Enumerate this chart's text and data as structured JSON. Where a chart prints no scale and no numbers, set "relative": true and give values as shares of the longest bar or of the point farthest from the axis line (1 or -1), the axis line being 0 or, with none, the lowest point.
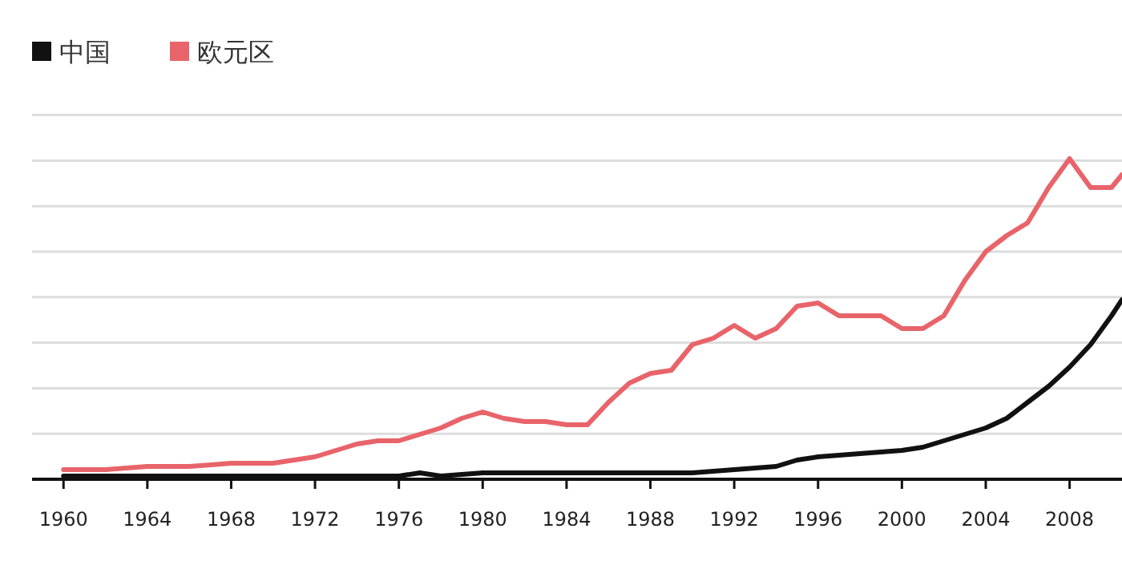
{
  "chart_data": {
    "type": "line",
    "relative": true,
    "grid": "y",
    "legend": "top left",
    "marker": "none",
    "line_style": "solid",
    "xlim": [
      1958.5,
      2010.5
    ],
    "xticks": [
      1960,
      1964,
      1968,
      1972,
      1976,
      1980,
      1984,
      1988,
      1992,
      1996,
      2000,
      2004,
      2008
    ],
    "series": [
      {
        "name": "中国",
        "color": "#111111",
        "x": [
          1960,
          1965,
          1970,
          1975,
          1976,
          1977,
          1978,
          1980,
          1984,
          1988,
          1990,
          1992,
          1994,
          1995,
          1996,
          1998,
          2000,
          2001,
          2002,
          2003,
          2004,
          2005,
          2006,
          2007,
          2008,
          2009,
          2010,
          2010.5
        ],
        "values": [
          0.01,
          0.01,
          0.01,
          0.01,
          0.01,
          0.02,
          0.01,
          0.02,
          0.02,
          0.02,
          0.02,
          0.03,
          0.04,
          0.06,
          0.07,
          0.08,
          0.09,
          0.1,
          0.12,
          0.14,
          0.16,
          0.19,
          0.24,
          0.29,
          0.35,
          0.42,
          0.51,
          0.56
        ]
      },
      {
        "name": "欧元区",
        "color": "#e8646a",
        "x": [
          1960,
          1962,
          1964,
          1966,
          1968,
          1970,
          1972,
          1973,
          1974,
          1975,
          1976,
          1977,
          1978,
          1979,
          1980,
          1981,
          1982,
          1983,
          1984,
          1985,
          1986,
          1987,
          1988,
          1989,
          1990,
          1991,
          1992,
          1993,
          1994,
          1995,
          1996,
          1997,
          1998,
          1999,
          2000,
          2001,
          2002,
          2003,
          2004,
          2005,
          2006,
          2007,
          2008,
          2009,
          2010,
          2010.5
        ],
        "values": [
          0.03,
          0.03,
          0.04,
          0.04,
          0.05,
          0.05,
          0.07,
          0.09,
          0.11,
          0.12,
          0.12,
          0.14,
          0.16,
          0.19,
          0.21,
          0.19,
          0.18,
          0.18,
          0.17,
          0.17,
          0.24,
          0.3,
          0.33,
          0.34,
          0.42,
          0.44,
          0.48,
          0.44,
          0.47,
          0.54,
          0.55,
          0.51,
          0.51,
          0.51,
          0.47,
          0.47,
          0.51,
          0.62,
          0.71,
          0.76,
          0.8,
          0.91,
          1,
          0.91,
          0.91,
          0.95
        ]
      }
    ]
  }
}
